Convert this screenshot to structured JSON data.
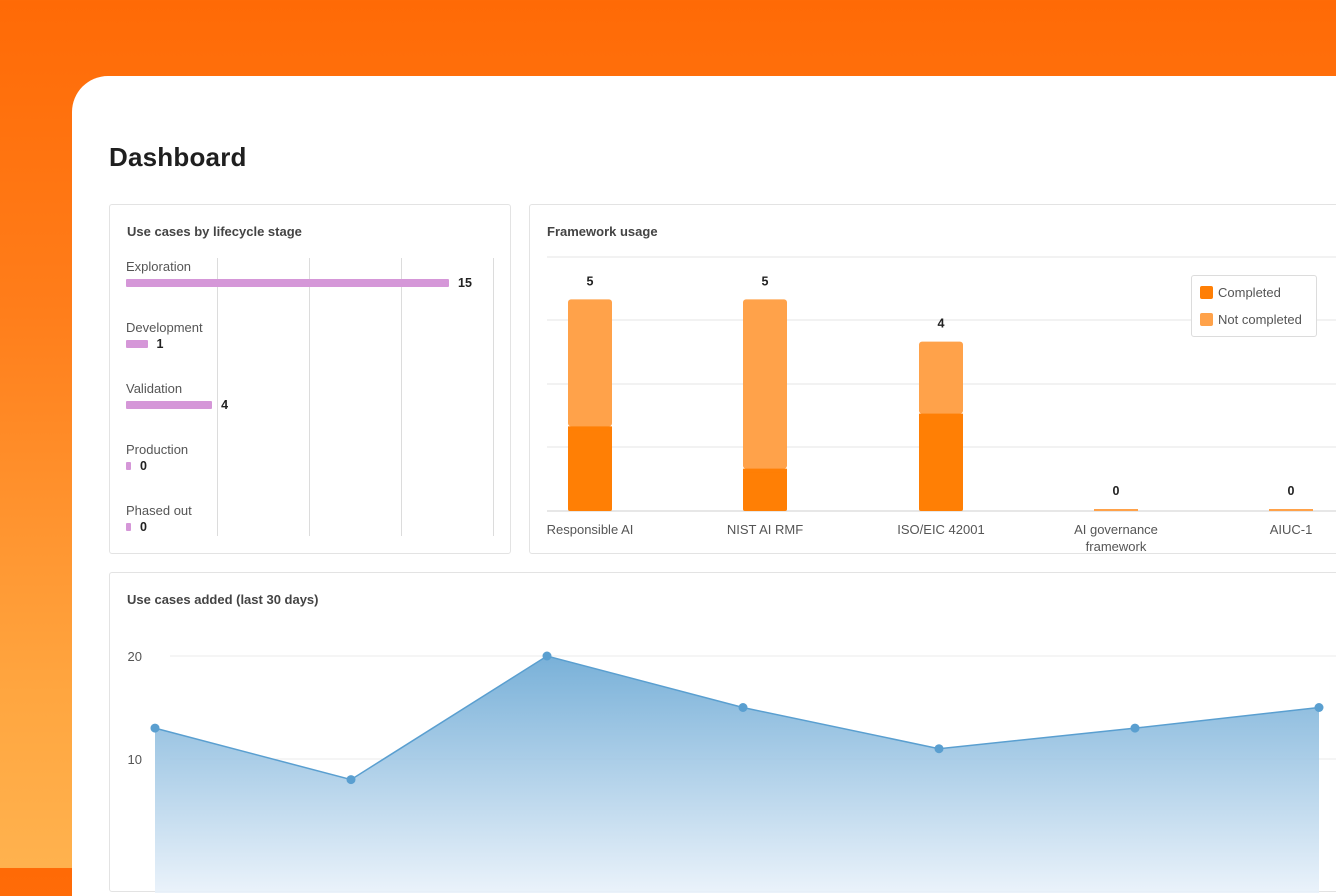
{
  "page": {
    "title": "Dashboard"
  },
  "lifecycle_card": {
    "title": "Use cases by lifecycle stage",
    "color": "#d597d8",
    "stages": [
      {
        "label": "Exploration",
        "value": "15"
      },
      {
        "label": "Development",
        "value": "1"
      },
      {
        "label": "Validation",
        "value": "4"
      },
      {
        "label": "Production",
        "value": "0"
      },
      {
        "label": "Phased out",
        "value": "0"
      }
    ]
  },
  "framework_card": {
    "title": "Framework usage",
    "legend": {
      "completed": "Completed",
      "not_completed": "Not completed"
    },
    "colors": {
      "completed": "#ff7f05",
      "not_completed": "#ffa24a"
    }
  },
  "added_card": {
    "title": "Use cases added (last 30 days)"
  },
  "chart_data": [
    {
      "type": "bar",
      "title": "Use cases by lifecycle stage",
      "orientation": "horizontal",
      "categories": [
        "Exploration",
        "Development",
        "Validation",
        "Production",
        "Phased out"
      ],
      "values": [
        15,
        1,
        4,
        0,
        0
      ],
      "grid": true
    },
    {
      "type": "bar",
      "title": "Framework usage",
      "stacked": true,
      "categories": [
        "Responsible AI",
        "NIST AI RMF",
        "ISO/EIC 42001",
        "AI governance framework",
        "AIUC-1"
      ],
      "totals": [
        5,
        5,
        4,
        0,
        0
      ],
      "series": [
        {
          "name": "Completed",
          "values": [
            2.0,
            1.0,
            2.3,
            0,
            0
          ]
        },
        {
          "name": "Not completed",
          "values": [
            3.0,
            4.0,
            1.7,
            0,
            0
          ]
        }
      ],
      "ylim": [
        0,
        6
      ],
      "legend": "top-right",
      "grid": true
    },
    {
      "type": "area",
      "title": "Use cases added (last 30 days)",
      "x": [
        1,
        2,
        3,
        4,
        5,
        6,
        7
      ],
      "values": [
        13,
        8,
        20,
        15,
        11,
        13,
        15
      ],
      "yticks": [
        "20",
        "10"
      ],
      "color": "#5a9fd0",
      "grid": true
    }
  ]
}
